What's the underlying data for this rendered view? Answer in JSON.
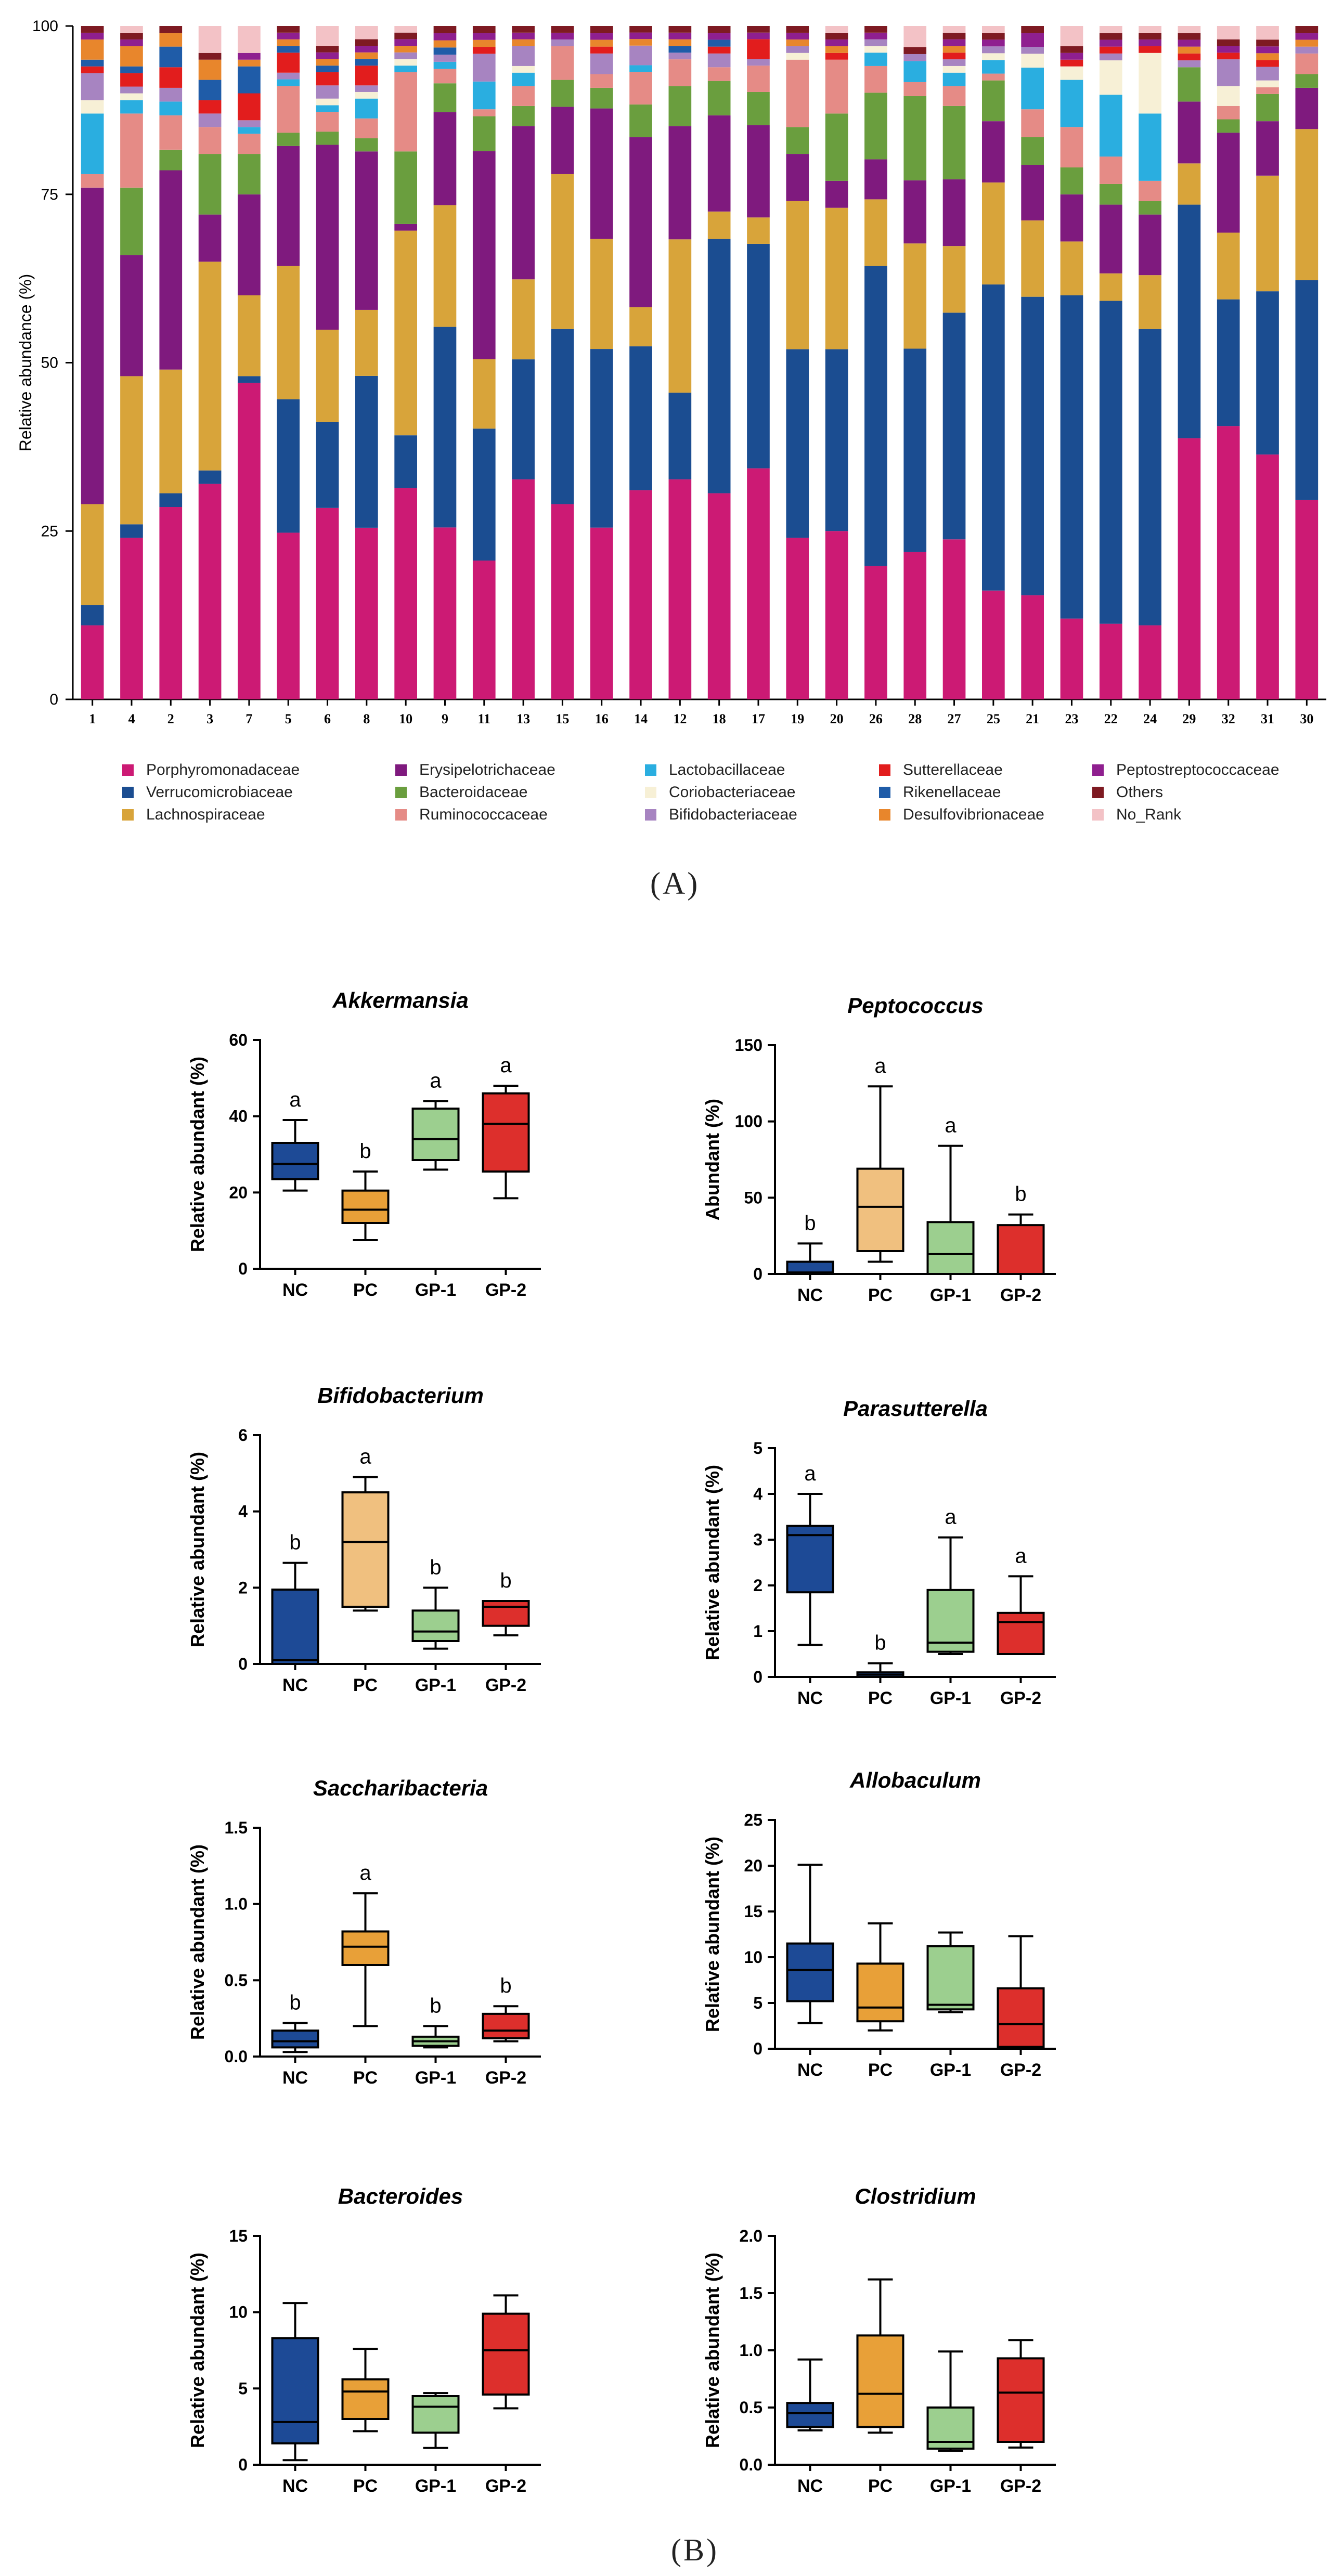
{
  "panel_labels": {
    "a": "(A)",
    "b": "(B)"
  },
  "chart_data": [
    {
      "type": "stacked_bar",
      "id": "A",
      "ylabel": "Relative abundance (%)",
      "ylim": [
        0,
        100
      ],
      "yticks": [
        "0",
        "25",
        "50",
        "75",
        "100"
      ],
      "categories": [
        "1",
        "4",
        "2",
        "3",
        "7",
        "5",
        "6",
        "8",
        "10",
        "9",
        "11",
        "13",
        "15",
        "16",
        "14",
        "12",
        "18",
        "17",
        "19",
        "20",
        "26",
        "28",
        "27",
        "25",
        "21",
        "23",
        "22",
        "24",
        "29",
        "32",
        "31",
        "30"
      ],
      "legend": [
        "Porphyromonadaceae",
        "Erysipelotrichaceae",
        "Lactobacillaceae",
        "Sutterellaceae",
        "Peptostreptococcaceae",
        "Verrucomicrobiaceae",
        "Bacteroidaceae",
        "Coriobacteriaceae",
        "Rikenellaceae",
        "Others",
        "Lachnospiraceae",
        "Ruminococcaceae",
        "Bifidobacteriaceae",
        "Desulfovibrionaceae",
        "No_Rank"
      ],
      "series": [
        {
          "name": "Porphyromonadaceae",
          "color": "#cc1a74",
          "values": [
            11,
            24,
            28,
            32,
            47,
            25,
            29,
            26,
            32,
            24,
            20,
            33,
            29,
            25,
            32,
            33,
            30,
            35,
            24,
            25,
            20,
            21,
            24,
            16,
            15,
            12,
            11,
            11,
            38,
            41,
            36,
            29
          ]
        },
        {
          "name": "Verrucomicrobiaceae",
          "color": "#1b4d91",
          "values": [
            3,
            2,
            2,
            2,
            1,
            20,
            13,
            23,
            8,
            28,
            19,
            18,
            26,
            26,
            22,
            13,
            37,
            34,
            28,
            27,
            45,
            29,
            34,
            45,
            43,
            48,
            47,
            44,
            34,
            19,
            24,
            32
          ]
        },
        {
          "name": "Lachnospiraceae",
          "color": "#d8a43a",
          "values": [
            15,
            22,
            18,
            31,
            12,
            20,
            14,
            10,
            31,
            17,
            10,
            12,
            23,
            16,
            6,
            23,
            4,
            4,
            22,
            21,
            10,
            15,
            10,
            15,
            11,
            8,
            4,
            8,
            6,
            10,
            17,
            22
          ]
        },
        {
          "name": "Erysipelotrichaceae",
          "color": "#7f1a7e",
          "values": [
            47,
            18,
            29,
            7,
            15,
            18,
            28,
            24,
            1,
            13,
            30,
            23,
            10,
            19,
            26,
            17,
            14,
            14,
            7,
            4,
            6,
            9,
            10,
            9,
            8,
            7,
            10,
            9,
            9,
            15,
            8,
            6
          ]
        },
        {
          "name": "Bacteroidaceae",
          "color": "#6a9e3e",
          "values": [
            0,
            10,
            3,
            9,
            6,
            2,
            2,
            2,
            11,
            4,
            5,
            3,
            4,
            3,
            5,
            6,
            5,
            5,
            4,
            10,
            10,
            12,
            11,
            6,
            4,
            4,
            3,
            2,
            5,
            2,
            4,
            2
          ]
        },
        {
          "name": "Ruminococcaceae",
          "color": "#e58b86",
          "values": [
            2,
            11,
            5,
            4,
            3,
            7,
            3,
            3,
            12,
            2,
            1,
            3,
            5,
            2,
            5,
            4,
            2,
            4,
            10,
            8,
            4,
            2,
            3,
            1,
            4,
            6,
            4,
            3,
            0,
            2,
            1,
            3
          ]
        },
        {
          "name": "Lactobacillaceae",
          "color": "#2aaee0",
          "values": [
            9,
            2,
            2,
            0,
            1,
            1,
            1,
            3,
            1,
            1,
            4,
            2,
            0,
            0,
            1,
            0,
            0,
            0,
            0,
            0,
            2,
            3,
            2,
            2,
            6,
            7,
            9,
            10,
            0,
            0,
            0,
            0
          ]
        },
        {
          "name": "Coriobacteriaceae",
          "color": "#f7f0d6",
          "values": [
            2,
            1,
            0,
            0,
            0,
            0,
            1,
            1,
            1,
            0,
            0,
            1,
            0,
            0,
            0,
            0,
            0,
            0,
            1,
            0,
            1,
            0,
            1,
            1,
            2,
            2,
            5,
            9,
            0,
            3,
            1,
            0
          ]
        },
        {
          "name": "Bifidobacteriaceae",
          "color": "#a784c1",
          "values": [
            4,
            1,
            2,
            2,
            1,
            1,
            2,
            1,
            1,
            1,
            4,
            3,
            1,
            3,
            3,
            1,
            2,
            1,
            1,
            0,
            1,
            1,
            1,
            1,
            1,
            0,
            1,
            0,
            1,
            4,
            2,
            1
          ]
        },
        {
          "name": "Sutterellaceae",
          "color": "#e21d1d",
          "values": [
            1,
            2,
            3,
            2,
            4,
            3,
            2,
            3,
            0,
            0,
            1,
            0,
            0,
            1,
            0,
            0,
            1,
            3,
            0,
            1,
            0,
            0,
            1,
            0,
            0,
            1,
            1,
            1,
            1,
            1,
            1,
            0
          ]
        },
        {
          "name": "Rikenellaceae",
          "color": "#1f5ca8",
          "values": [
            1,
            1,
            3,
            3,
            4,
            1,
            1,
            1,
            0,
            1,
            0,
            0,
            0,
            0,
            0,
            1,
            1,
            0,
            0,
            0,
            0,
            0,
            0,
            0,
            0,
            0,
            0,
            0,
            0,
            0,
            0,
            0
          ]
        },
        {
          "name": "Desulfovibrionaceae",
          "color": "#e8862c",
          "values": [
            3,
            3,
            2,
            3,
            1,
            1,
            1,
            1,
            1,
            1,
            1,
            1,
            0,
            1,
            1,
            1,
            0,
            0,
            1,
            1,
            0,
            0,
            1,
            0,
            0,
            0,
            0,
            0,
            1,
            0,
            1,
            1
          ]
        },
        {
          "name": "Peptostreptococcaceae",
          "color": "#8f1f8f",
          "values": [
            1,
            1,
            0,
            0,
            1,
            1,
            1,
            1,
            1,
            1,
            1,
            1,
            1,
            1,
            1,
            1,
            1,
            1,
            1,
            1,
            1,
            0,
            1,
            1,
            2,
            1,
            1,
            1,
            1,
            1,
            1,
            1
          ]
        },
        {
          "name": "Others",
          "color": "#7e1a22",
          "values": [
            1,
            1,
            1,
            1,
            0,
            1,
            1,
            1,
            1,
            1,
            1,
            1,
            1,
            1,
            1,
            1,
            1,
            1,
            1,
            1,
            1,
            1,
            1,
            1,
            1,
            1,
            1,
            1,
            1,
            1,
            1,
            1
          ]
        },
        {
          "name": "No_Rank",
          "color": "#f3c2c6",
          "values": [
            0,
            1,
            0,
            4,
            4,
            0,
            3,
            2,
            1,
            0,
            0,
            0,
            0,
            0,
            0,
            0,
            0,
            0,
            0,
            1,
            0,
            3,
            1,
            1,
            0,
            3,
            1,
            1,
            1,
            2,
            2,
            0
          ]
        }
      ]
    },
    {
      "type": "boxplot",
      "id": "akkermansia",
      "title": "Akkermansia",
      "ylabel": "Relative abundant (%)",
      "ylim": [
        0,
        60
      ],
      "yticks": [
        "0",
        "20",
        "40",
        "60"
      ],
      "categories": [
        "NC",
        "PC",
        "GP-1",
        "GP-2"
      ],
      "boxes": [
        {
          "min": 20.5,
          "q1": 23.5,
          "median": 27.5,
          "q3": 33,
          "max": 39,
          "color": "#1d4a96",
          "sig": "a"
        },
        {
          "min": 7.5,
          "q1": 12,
          "median": 15.5,
          "q3": 20.5,
          "max": 25.5,
          "color": "#e8a038",
          "sig": "b"
        },
        {
          "min": 26,
          "q1": 28.5,
          "median": 34,
          "q3": 42,
          "max": 44,
          "color": "#9ccf8f",
          "sig": "a"
        },
        {
          "min": 18.5,
          "q1": 25.5,
          "median": 38,
          "q3": 46,
          "max": 48,
          "color": "#dd2f2c",
          "sig": "a"
        }
      ]
    },
    {
      "type": "boxplot",
      "id": "peptococcus",
      "title": "Peptococcus",
      "ylabel": "Abundant (%)",
      "ylim": [
        0,
        150
      ],
      "yticks": [
        "0",
        "50",
        "100",
        "150"
      ],
      "categories": [
        "NC",
        "PC",
        "GP-1",
        "GP-2"
      ],
      "boxes": [
        {
          "min": 0,
          "q1": 0.5,
          "median": 1,
          "q3": 8,
          "max": 20,
          "color": "#1d4a96",
          "sig": "b"
        },
        {
          "min": 8,
          "q1": 15,
          "median": 44,
          "q3": 69,
          "max": 123,
          "color": "#f0c07f",
          "sig": "a"
        },
        {
          "min": 0,
          "q1": 0,
          "median": 13,
          "q3": 34,
          "max": 84,
          "color": "#9ccf8f",
          "sig": "a"
        },
        {
          "min": 0,
          "q1": 0,
          "median": 0,
          "q3": 32,
          "max": 39,
          "color": "#dd2f2c",
          "sig": "b"
        }
      ]
    },
    {
      "type": "boxplot",
      "id": "bifidobacterium",
      "title": "Bifidobacterium",
      "ylabel": "Relative abundant (%)",
      "ylim": [
        0,
        6
      ],
      "yticks": [
        "0",
        "2",
        "4",
        "6"
      ],
      "categories": [
        "NC",
        "PC",
        "GP-1",
        "GP-2"
      ],
      "boxes": [
        {
          "min": 0,
          "q1": 0,
          "median": 0.1,
          "q3": 1.95,
          "max": 2.65,
          "color": "#1d4a96",
          "sig": "b"
        },
        {
          "min": 1.4,
          "q1": 1.5,
          "median": 3.2,
          "q3": 4.5,
          "max": 4.9,
          "color": "#f0c07f",
          "sig": "a"
        },
        {
          "min": 0.4,
          "q1": 0.6,
          "median": 0.85,
          "q3": 1.4,
          "max": 2.0,
          "color": "#9ccf8f",
          "sig": "b"
        },
        {
          "min": 0.75,
          "q1": 1.0,
          "median": 1.5,
          "q3": 1.65,
          "max": 1.65,
          "color": "#dd2f2c",
          "sig": "b"
        }
      ]
    },
    {
      "type": "boxplot",
      "id": "parasutterella",
      "title": "Parasutterella",
      "ylabel": "Relative abundant (%)",
      "ylim": [
        0,
        5
      ],
      "yticks": [
        "0",
        "1",
        "2",
        "3",
        "4",
        "5"
      ],
      "categories": [
        "NC",
        "PC",
        "GP-1",
        "GP-2"
      ],
      "boxes": [
        {
          "min": 0.7,
          "q1": 1.85,
          "median": 3.1,
          "q3": 3.3,
          "max": 4.0,
          "color": "#1d4a96",
          "sig": "a"
        },
        {
          "min": 0,
          "q1": 0,
          "median": 0.05,
          "q3": 0.1,
          "max": 0.3,
          "color": "#1d4a96",
          "sig": "b"
        },
        {
          "min": 0.5,
          "q1": 0.55,
          "median": 0.75,
          "q3": 1.9,
          "max": 3.05,
          "color": "#9ccf8f",
          "sig": "a"
        },
        {
          "min": 0.5,
          "q1": 0.5,
          "median": 1.2,
          "q3": 1.4,
          "max": 2.2,
          "color": "#dd2f2c",
          "sig": "a"
        }
      ]
    },
    {
      "type": "boxplot",
      "id": "saccharibacteria",
      "title": "Saccharibacteria",
      "ylabel": "Relative abundant (%)",
      "ylim": [
        0,
        1.5
      ],
      "yticks": [
        "0.0",
        "0.5",
        "1.0",
        "1.5"
      ],
      "categories": [
        "NC",
        "PC",
        "GP-1",
        "GP-2"
      ],
      "boxes": [
        {
          "min": 0.03,
          "q1": 0.06,
          "median": 0.1,
          "q3": 0.17,
          "max": 0.22,
          "color": "#1d4a96",
          "sig": "b"
        },
        {
          "min": 0.2,
          "q1": 0.6,
          "median": 0.72,
          "q3": 0.82,
          "max": 1.07,
          "color": "#e8a038",
          "sig": "a"
        },
        {
          "min": 0.06,
          "q1": 0.07,
          "median": 0.1,
          "q3": 0.13,
          "max": 0.2,
          "color": "#9ccf8f",
          "sig": "b"
        },
        {
          "min": 0.1,
          "q1": 0.12,
          "median": 0.17,
          "q3": 0.28,
          "max": 0.33,
          "color": "#dd2f2c",
          "sig": "b"
        }
      ]
    },
    {
      "type": "boxplot",
      "id": "allobaculum",
      "title": "Allobaculum",
      "ylabel": "Relative abundant (%)",
      "ylim": [
        0,
        25
      ],
      "yticks": [
        "0",
        "5",
        "10",
        "15",
        "20",
        "25"
      ],
      "categories": [
        "NC",
        "PC",
        "GP-1",
        "GP-2"
      ],
      "boxes": [
        {
          "min": 2.8,
          "q1": 5.2,
          "median": 8.6,
          "q3": 11.5,
          "max": 20.1,
          "color": "#1d4a96",
          "sig": ""
        },
        {
          "min": 2.0,
          "q1": 3.0,
          "median": 4.5,
          "q3": 9.3,
          "max": 13.7,
          "color": "#e8a038",
          "sig": ""
        },
        {
          "min": 4.0,
          "q1": 4.3,
          "median": 4.8,
          "q3": 11.2,
          "max": 12.7,
          "color": "#9ccf8f",
          "sig": ""
        },
        {
          "min": 0,
          "q1": 0.2,
          "median": 2.7,
          "q3": 6.6,
          "max": 12.3,
          "color": "#dd2f2c",
          "sig": ""
        }
      ]
    },
    {
      "type": "boxplot",
      "id": "bacteroides",
      "title": "Bacteroides",
      "ylabel": "Relative abundant (%)",
      "ylim": [
        0,
        15
      ],
      "yticks": [
        "0",
        "5",
        "10",
        "15"
      ],
      "categories": [
        "NC",
        "PC",
        "GP-1",
        "GP-2"
      ],
      "boxes": [
        {
          "min": 0.3,
          "q1": 1.4,
          "median": 2.8,
          "q3": 8.3,
          "max": 10.6,
          "color": "#1d4a96",
          "sig": ""
        },
        {
          "min": 2.2,
          "q1": 3.0,
          "median": 4.8,
          "q3": 5.6,
          "max": 7.6,
          "color": "#e8a038",
          "sig": ""
        },
        {
          "min": 1.1,
          "q1": 2.1,
          "median": 3.8,
          "q3": 4.5,
          "max": 4.7,
          "color": "#9ccf8f",
          "sig": ""
        },
        {
          "min": 3.7,
          "q1": 4.6,
          "median": 7.5,
          "q3": 9.9,
          "max": 11.1,
          "color": "#dd2f2c",
          "sig": ""
        }
      ]
    },
    {
      "type": "boxplot",
      "id": "clostridium",
      "title": "Clostridium",
      "ylabel": "Relative abundant (%)",
      "ylim": [
        0,
        2
      ],
      "yticks": [
        "0.0",
        "0.5",
        "1.0",
        "1.5",
        "2.0"
      ],
      "categories": [
        "NC",
        "PC",
        "GP-1",
        "GP-2"
      ],
      "boxes": [
        {
          "min": 0.3,
          "q1": 0.33,
          "median": 0.45,
          "q3": 0.54,
          "max": 0.92,
          "color": "#1d4a96",
          "sig": ""
        },
        {
          "min": 0.28,
          "q1": 0.33,
          "median": 0.62,
          "q3": 1.13,
          "max": 1.62,
          "color": "#e8a038",
          "sig": ""
        },
        {
          "min": 0.12,
          "q1": 0.14,
          "median": 0.2,
          "q3": 0.5,
          "max": 0.99,
          "color": "#9ccf8f",
          "sig": ""
        },
        {
          "min": 0.15,
          "q1": 0.2,
          "median": 0.63,
          "q3": 0.93,
          "max": 1.09,
          "color": "#dd2f2c",
          "sig": ""
        }
      ]
    }
  ]
}
